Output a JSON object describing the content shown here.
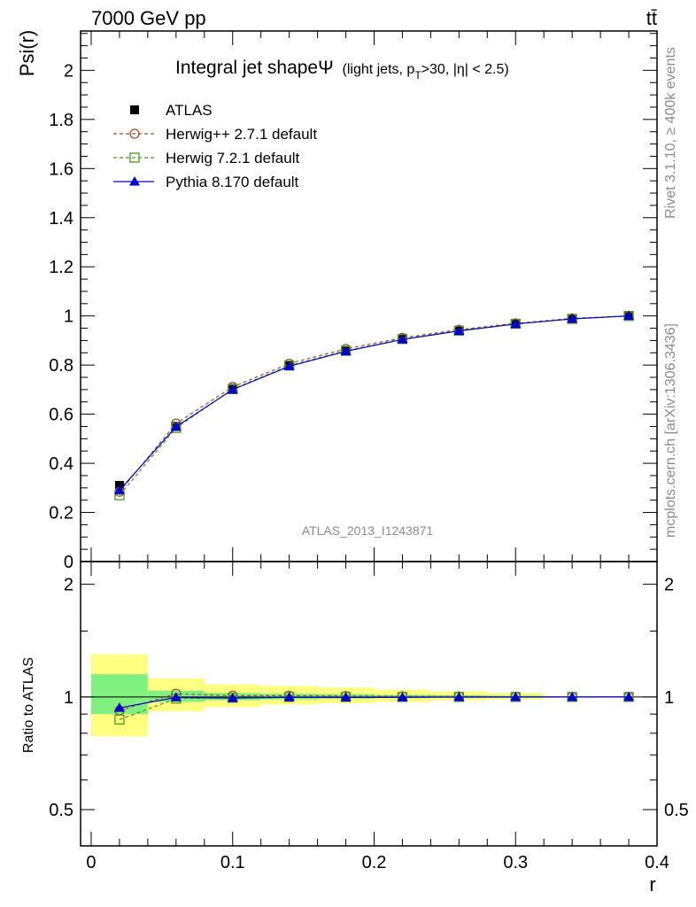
{
  "header": {
    "energy_label": "7000 GeV pp",
    "process_label": "tt̄",
    "rivet_label": "Rivet 3.1.10, ≥ 400k events",
    "site_label": "mcplots.cern.ch [arXiv:1306.3436]",
    "analysis_label": "ATLAS_2013_I1243871"
  },
  "chart_data": {
    "type": "line",
    "title_main": "Integral jet shapeΨ",
    "title_sub": "(light jets, p",
    "title_sub_sub": "T",
    "title_sub_rest": ">30, |η| < 2.5)",
    "ylabel": "Psi(r)",
    "ratio_ylabel": "Ratio to ATLAS",
    "xlabel": "r",
    "xlim": [
      -0.0075,
      0.4
    ],
    "ylim": [
      0,
      2.16
    ],
    "ratio_ylim": [
      0.4,
      2.3
    ],
    "x_ticks": [
      "0",
      "0.1",
      "0.2",
      "0.3",
      "0.4"
    ],
    "y_ticks": [
      "0",
      "0.2",
      "0.4",
      "0.6",
      "0.8",
      "1",
      "1.2",
      "1.4",
      "1.6",
      "1.8",
      "2"
    ],
    "ratio_ticks": [
      "0.5",
      "1",
      "2"
    ],
    "x": [
      0.02,
      0.06,
      0.1,
      0.14,
      0.18,
      0.22,
      0.26,
      0.3,
      0.34,
      0.38
    ],
    "bin_edges": [
      0.0,
      0.04,
      0.08,
      0.12,
      0.16,
      0.2,
      0.24,
      0.28,
      0.32,
      0.36,
      0.4
    ],
    "series": [
      {
        "name": "ATLAS",
        "color": "#000000",
        "marker": "square-filled",
        "values": [
          0.31,
          0.55,
          0.705,
          0.797,
          0.858,
          0.906,
          0.94,
          0.968,
          0.988,
          1.0
        ],
        "ratio": [
          1,
          1,
          1,
          1,
          1,
          1,
          1,
          1,
          1,
          1
        ]
      },
      {
        "name": "Herwig++ 2.7.1 default",
        "color": "#a0522d",
        "marker": "circle-open",
        "dash": true,
        "values": [
          0.284,
          0.562,
          0.711,
          0.806,
          0.866,
          0.911,
          0.944,
          0.97,
          0.99,
          1.0
        ],
        "ratio": [
          0.92,
          1.02,
          1.008,
          1.008,
          1.006,
          1.004,
          1.003,
          1.001,
          1.0,
          1.0
        ]
      },
      {
        "name": "Herwig 7.2.1 default",
        "color": "#4a9a1e",
        "marker": "square-open",
        "dash": true,
        "values": [
          0.27,
          0.544,
          0.702,
          0.798,
          0.858,
          0.906,
          0.94,
          0.968,
          0.988,
          1.0
        ],
        "ratio": [
          0.87,
          0.99,
          0.995,
          1.0,
          1.0,
          1.0,
          1.0,
          1.0,
          1.0,
          1.0
        ]
      },
      {
        "name": "Pythia 8.170 default",
        "color": "#0000cc",
        "marker": "triangle-filled",
        "values": [
          0.29,
          0.549,
          0.7,
          0.795,
          0.856,
          0.904,
          0.939,
          0.967,
          0.988,
          1.0
        ],
        "ratio": [
          0.935,
          0.997,
          0.993,
          0.998,
          0.997,
          0.998,
          0.999,
          0.999,
          1.0,
          1.0
        ]
      }
    ],
    "band_stat": {
      "low": [
        0.9,
        0.97,
        0.98,
        0.985,
        0.99,
        0.993,
        0.995,
        0.997,
        0.999,
        1.0
      ],
      "high": [
        1.15,
        1.04,
        1.025,
        1.02,
        1.018,
        1.013,
        1.01,
        1.008,
        1.002,
        1.0
      ]
    },
    "band_total": {
      "low": [
        0.785,
        0.915,
        0.94,
        0.955,
        0.962,
        0.97,
        0.978,
        0.985,
        0.995,
        1.0
      ],
      "high": [
        1.3,
        1.12,
        1.08,
        1.07,
        1.06,
        1.045,
        1.035,
        1.025,
        1.005,
        1.0
      ]
    },
    "colors": {
      "band_stat": "#80f080",
      "band_total": "#ffff80",
      "text_grey": "#8c8c8c"
    }
  }
}
